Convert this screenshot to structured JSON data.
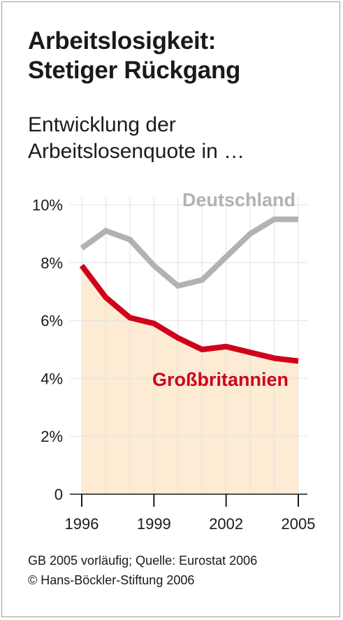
{
  "title_line1": "Arbeitslosigkeit:",
  "title_line2": "Stetiger Rückgang",
  "subtitle_line1": "Entwicklung der",
  "subtitle_line2": "Arbeitslosenquote in …",
  "footer_line1": "GB 2005 vorläufig; Quelle: Eurostat 2006",
  "footer_line2": "© Hans-Böckler-Stiftung 2006",
  "chart_data": {
    "type": "line",
    "x": [
      1996,
      1997,
      1998,
      1999,
      2000,
      2001,
      2002,
      2003,
      2004,
      2005
    ],
    "x_tick_labels": [
      "1996",
      "1999",
      "2002",
      "2005"
    ],
    "x_tick_values": [
      1996,
      1999,
      2002,
      2005
    ],
    "y_tick_labels": [
      "0",
      "2%",
      "4%",
      "6%",
      "8%",
      "10%"
    ],
    "y_tick_values": [
      0,
      2,
      4,
      6,
      8,
      10
    ],
    "ylim": [
      0,
      10
    ],
    "grid": true,
    "series": [
      {
        "name": "Deutschland",
        "color": "#b2b2b2",
        "values": [
          8.5,
          9.1,
          8.8,
          7.9,
          7.2,
          7.4,
          8.2,
          9.0,
          9.5,
          9.5
        ]
      },
      {
        "name": "Großbritannien",
        "color": "#d0021b",
        "fill": "#fdebd3",
        "values": [
          7.9,
          6.8,
          6.1,
          5.9,
          5.4,
          5.0,
          5.1,
          4.9,
          4.7,
          4.6
        ]
      }
    ]
  }
}
